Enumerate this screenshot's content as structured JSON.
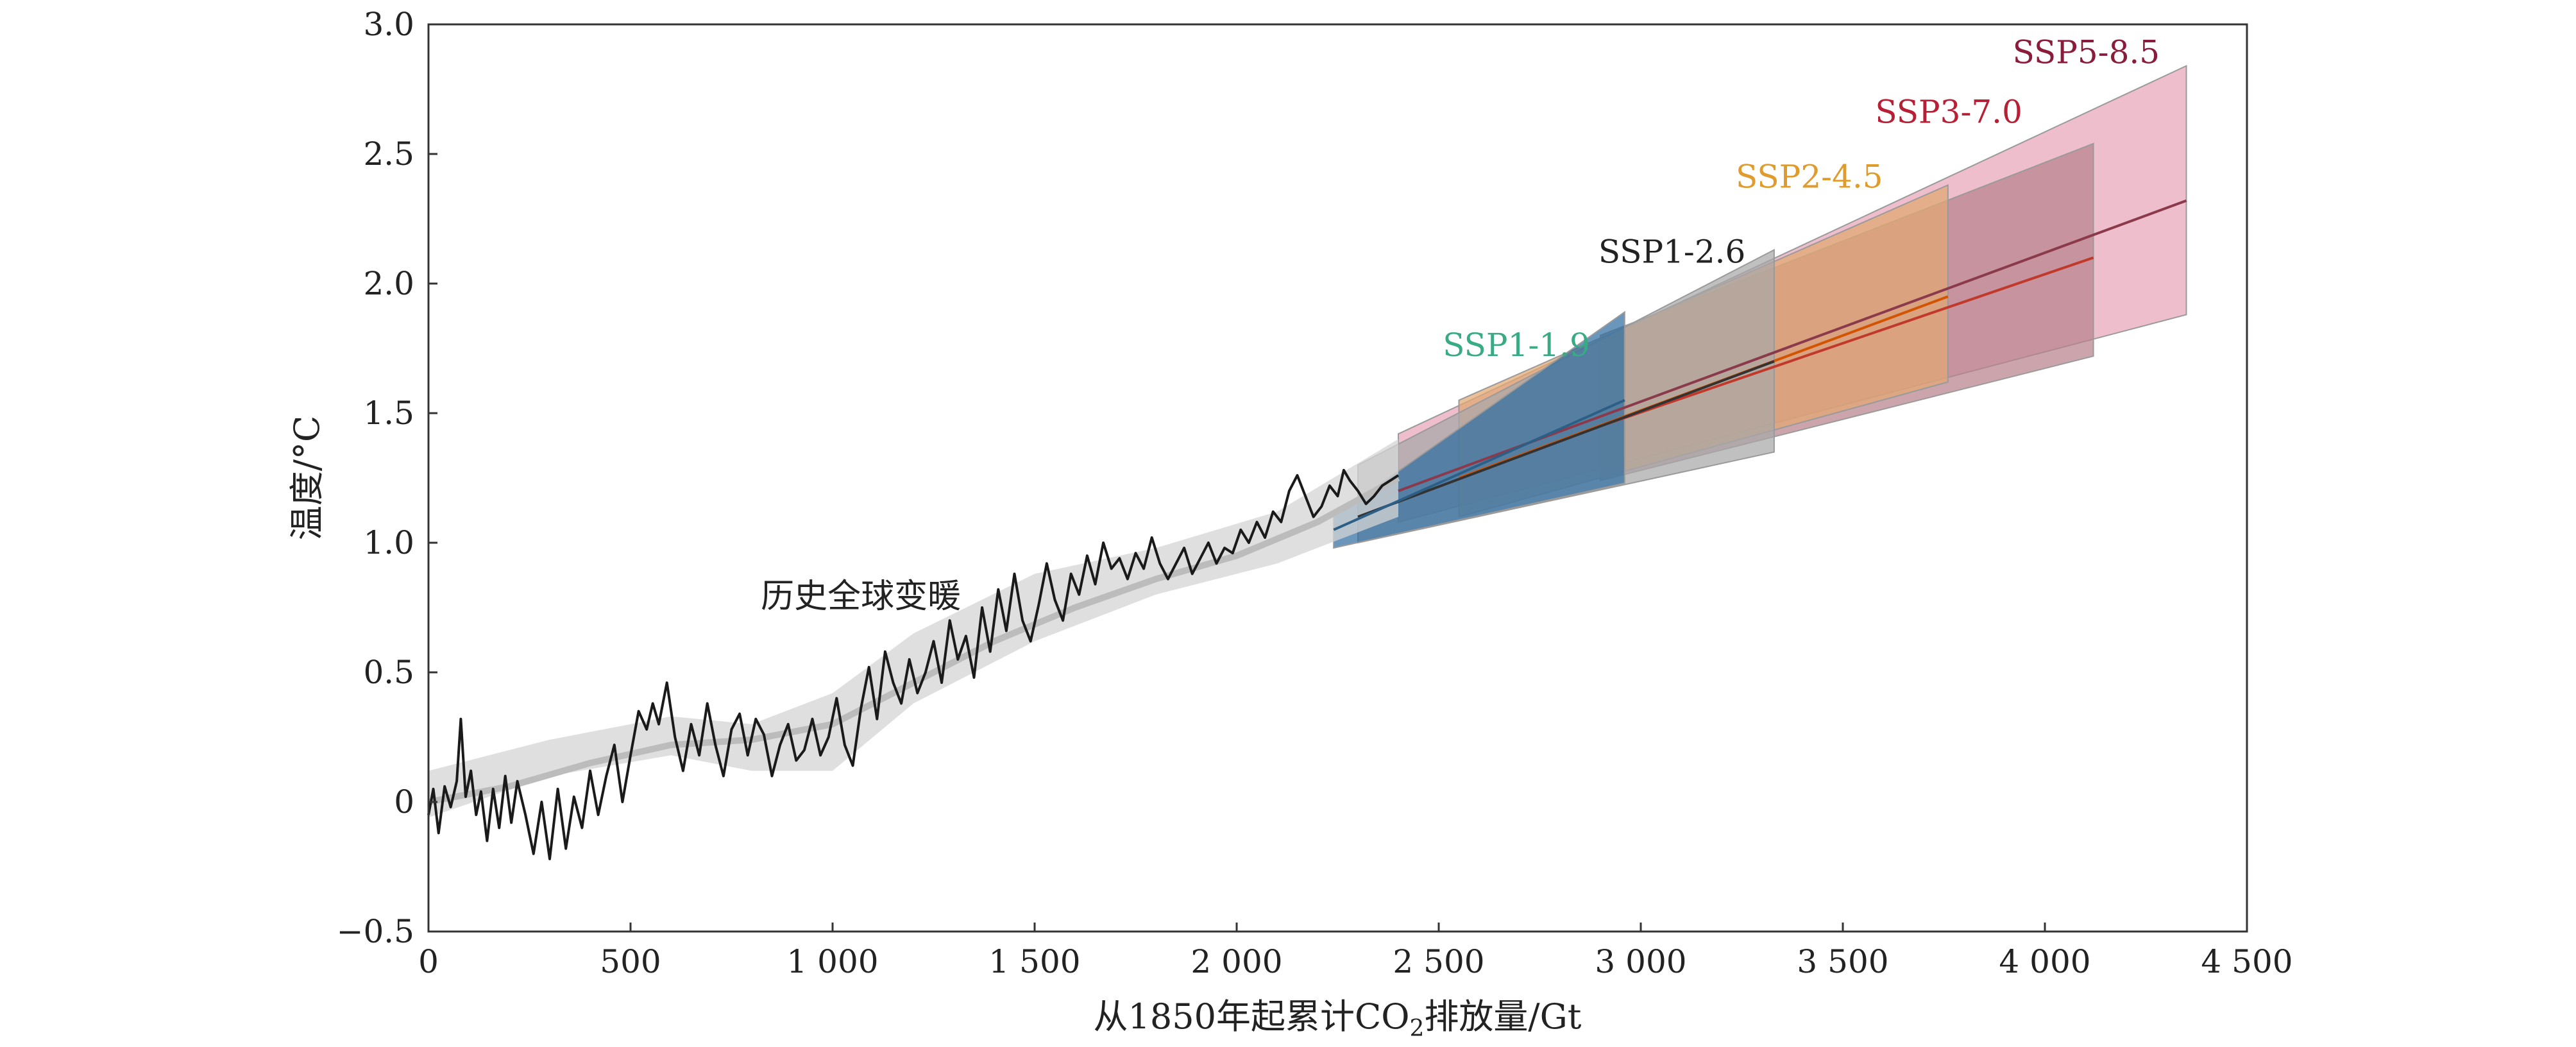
{
  "chart_data": {
    "type": "line",
    "xlabel_main": "从1850年起累计CO",
    "xlabel_sub": "2",
    "xlabel_tail": "排放量/Gt",
    "ylabel": "温度/°C",
    "xlim": [
      0,
      4500
    ],
    "ylim": [
      -0.5,
      3.0
    ],
    "x_ticks": [
      0,
      500,
      1000,
      1500,
      2000,
      2500,
      3000,
      3500,
      4000,
      4500
    ],
    "x_tick_labels": [
      "0",
      "500",
      "1 000",
      "1 500",
      "2 000",
      "2 500",
      "3 000",
      "3 500",
      "4 000",
      "4 500"
    ],
    "y_ticks": [
      -0.5,
      0,
      0.5,
      1.0,
      1.5,
      2.0,
      2.5,
      3.0
    ],
    "y_tick_labels": [
      "−0.5",
      "0",
      "0.5",
      "1.0",
      "1.5",
      "2.0",
      "2.5",
      "3.0"
    ],
    "annotations": [
      {
        "text": "历史全球变暖",
        "x": 1070,
        "y": 0.75
      }
    ],
    "historical_band": {
      "name": "历史全球变暖",
      "color": "#d4d4d4",
      "x": [
        0,
        300,
        600,
        800,
        1000,
        1200,
        1500,
        1800,
        2100,
        2400
      ],
      "lower": [
        -0.06,
        0.1,
        0.18,
        0.12,
        0.12,
        0.38,
        0.62,
        0.8,
        0.92,
        1.1
      ],
      "upper": [
        0.12,
        0.24,
        0.33,
        0.3,
        0.42,
        0.65,
        0.88,
        0.98,
        1.12,
        1.4
      ]
    },
    "historical_smooth": {
      "color": "#bcbcbc",
      "x": [
        0,
        200,
        400,
        600,
        800,
        1000,
        1200,
        1400,
        1600,
        1800,
        2000,
        2200,
        2400
      ],
      "y": [
        0.0,
        0.06,
        0.15,
        0.22,
        0.24,
        0.3,
        0.46,
        0.62,
        0.75,
        0.86,
        0.95,
        1.08,
        1.25
      ]
    },
    "historical_line": {
      "color": "#1a1a1a",
      "x": [
        0,
        12,
        25,
        40,
        55,
        70,
        80,
        92,
        105,
        118,
        130,
        145,
        160,
        175,
        190,
        205,
        220,
        240,
        260,
        280,
        300,
        320,
        340,
        360,
        380,
        400,
        420,
        440,
        460,
        480,
        500,
        520,
        540,
        555,
        570,
        590,
        610,
        630,
        650,
        670,
        690,
        710,
        730,
        750,
        770,
        790,
        810,
        830,
        850,
        870,
        890,
        910,
        930,
        950,
        970,
        990,
        1010,
        1030,
        1050,
        1070,
        1090,
        1110,
        1130,
        1150,
        1170,
        1190,
        1210,
        1230,
        1250,
        1270,
        1290,
        1310,
        1330,
        1350,
        1370,
        1390,
        1410,
        1430,
        1450,
        1470,
        1490,
        1510,
        1530,
        1550,
        1570,
        1590,
        1610,
        1630,
        1650,
        1670,
        1690,
        1710,
        1730,
        1750,
        1770,
        1790,
        1810,
        1830,
        1850,
        1870,
        1890,
        1910,
        1930,
        1950,
        1970,
        1990,
        2010,
        2030,
        2050,
        2070,
        2090,
        2110,
        2130,
        2150,
        2170,
        2190,
        2210,
        2230,
        2250,
        2265,
        2280,
        2300,
        2320,
        2340,
        2360,
        2380,
        2400
      ],
      "y": [
        -0.05,
        0.05,
        -0.12,
        0.06,
        -0.02,
        0.08,
        0.32,
        0.02,
        0.12,
        -0.05,
        0.04,
        -0.15,
        0.05,
        -0.1,
        0.1,
        -0.08,
        0.08,
        -0.05,
        -0.2,
        0.0,
        -0.22,
        0.05,
        -0.18,
        0.02,
        -0.1,
        0.12,
        -0.05,
        0.1,
        0.22,
        0.0,
        0.18,
        0.35,
        0.28,
        0.38,
        0.3,
        0.46,
        0.25,
        0.12,
        0.3,
        0.18,
        0.38,
        0.22,
        0.1,
        0.28,
        0.34,
        0.18,
        0.32,
        0.26,
        0.1,
        0.22,
        0.3,
        0.16,
        0.2,
        0.32,
        0.18,
        0.25,
        0.4,
        0.22,
        0.14,
        0.36,
        0.52,
        0.32,
        0.58,
        0.46,
        0.38,
        0.55,
        0.42,
        0.5,
        0.62,
        0.46,
        0.7,
        0.55,
        0.64,
        0.48,
        0.75,
        0.58,
        0.82,
        0.66,
        0.88,
        0.7,
        0.62,
        0.76,
        0.92,
        0.78,
        0.7,
        0.88,
        0.8,
        0.95,
        0.84,
        1.0,
        0.9,
        0.94,
        0.86,
        0.96,
        0.9,
        1.02,
        0.92,
        0.86,
        0.92,
        0.98,
        0.88,
        0.94,
        1.0,
        0.92,
        0.98,
        0.96,
        1.05,
        1.0,
        1.08,
        1.02,
        1.12,
        1.08,
        1.2,
        1.26,
        1.18,
        1.1,
        1.14,
        1.22,
        1.18,
        1.28,
        1.24,
        1.2,
        1.15,
        1.18,
        1.22,
        1.24,
        1.26
      ]
    },
    "series": [
      {
        "name": "SSP5-8.5",
        "label_color": "#8a1b3a",
        "band_color": "#e8a5b8",
        "x_start": 2400,
        "x_end": 4350,
        "lower_start": 1.08,
        "lower_end": 1.88,
        "upper_start": 1.42,
        "upper_end": 2.84,
        "central_start": 1.2,
        "central_end": 2.32,
        "line_color": "#8a3a4a",
        "label_x": 3920,
        "label_y": 2.85
      },
      {
        "name": "SSP3-7.0",
        "label_color": "#b71f35",
        "band_color": "#b8828c",
        "x_start": 2900,
        "x_end": 4120,
        "lower_start": 1.24,
        "lower_end": 1.72,
        "upper_start": 1.8,
        "upper_end": 2.54,
        "central_start": 1.45,
        "central_end": 2.1,
        "line_color": "#c0392b",
        "label_x": 3580,
        "label_y": 2.62
      },
      {
        "name": "SSP2-4.5",
        "label_color": "#e09b2d",
        "band_color": "#e2a872",
        "x_start": 2550,
        "x_end": 3760,
        "lower_start": 1.1,
        "lower_end": 1.62,
        "upper_start": 1.55,
        "upper_end": 2.38,
        "central_start": 1.25,
        "central_end": 1.95,
        "line_color": "#d35400",
        "label_x": 3235,
        "label_y": 2.37
      },
      {
        "name": "SSP1-2.6",
        "label_color": "#222222",
        "band_color": "#a8a8a8",
        "x_start": 2300,
        "x_end": 3330,
        "lower_start": 1.0,
        "lower_end": 1.35,
        "upper_start": 1.3,
        "upper_end": 2.13,
        "central_start": 1.1,
        "central_end": 1.7,
        "line_color": "#333333",
        "label_x": 2895,
        "label_y": 2.08
      },
      {
        "name": "SSP1-1.9",
        "label_color": "#3aaa86",
        "band_color": "#2f6e9f",
        "x_start": 2240,
        "x_end": 2960,
        "lower_start": 0.98,
        "lower_end": 1.23,
        "upper_start": 1.1,
        "upper_end": 1.89,
        "central_start": 1.05,
        "central_end": 1.55,
        "line_color": "#2c5f86",
        "label_x": 2510,
        "label_y": 1.72
      }
    ]
  }
}
